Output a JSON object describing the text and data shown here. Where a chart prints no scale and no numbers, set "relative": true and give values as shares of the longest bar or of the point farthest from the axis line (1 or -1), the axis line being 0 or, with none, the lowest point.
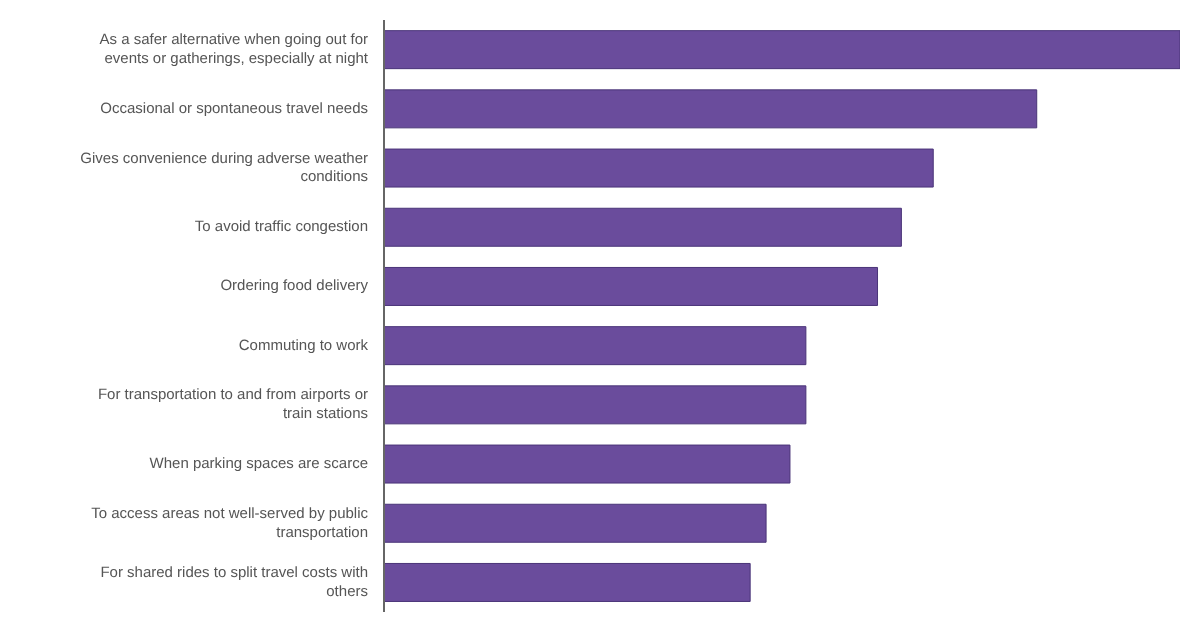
{
  "chart_data": {
    "type": "bar",
    "orientation": "horizontal",
    "relative": true,
    "categories": [
      "As a safer alternative when going out for events or gatherings, especially at night",
      "Occasional or spontaneous travel needs",
      "Gives convenience during adverse weather conditions",
      "To avoid traffic congestion",
      "Ordering food delivery",
      "Commuting to work",
      "For transportation to and from airports or train stations",
      "When parking spaces are scarce",
      "To access areas not well-served by public transportation",
      "For shared rides to split travel costs with others"
    ],
    "values": [
      1,
      0.82,
      0.69,
      0.65,
      0.62,
      0.53,
      0.53,
      0.51,
      0.48,
      0.46
    ],
    "color": "#6a4c9c",
    "grid": false
  }
}
